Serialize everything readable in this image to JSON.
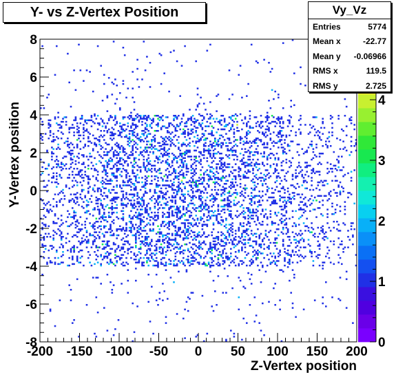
{
  "title": "Y- vs Z-Vertex Position",
  "stats": {
    "name": "Vy_Vz",
    "rows": [
      {
        "label": "Entries",
        "value": "5774"
      },
      {
        "label": "Mean x",
        "value": "-22.77"
      },
      {
        "label": "Mean y",
        "value": "-0.06966"
      },
      {
        "label": "RMS x",
        "value": "119.5"
      },
      {
        "label": "RMS y",
        "value": "2.725"
      }
    ]
  },
  "chart_data": {
    "type": "heatmap",
    "title": "Y- vs Z-Vertex Position",
    "xlabel": "Z-Vertex position",
    "ylabel": "Y-Vertex position",
    "xlim": [
      -200,
      200
    ],
    "ylim": [
      -8,
      8
    ],
    "xticks": [
      "-200",
      "-150",
      "-100",
      "-50",
      "0",
      "50",
      "100",
      "150",
      "200"
    ],
    "yticks": [
      "-8",
      "-6",
      "-4",
      "-2",
      "0",
      "2",
      "4",
      "6",
      "8"
    ],
    "zlim": [
      0,
      5
    ],
    "zticks": [
      "0",
      "1",
      "2",
      "3",
      "4",
      "5"
    ],
    "bins_x": 200,
    "bins_y": 200,
    "entries": 5774,
    "mean_x": -22.77,
    "mean_y": -0.06966,
    "rms_x": 119.5,
    "rms_y": 2.725,
    "dense_band_y": [
      -4,
      4
    ],
    "grid": false,
    "colormap": [
      "#7a00ff",
      "#6a00e8",
      "#5000e0",
      "#3a10e0",
      "#2030e6",
      "#1450f0",
      "#0a70f5",
      "#0a90f8",
      "#08b0f8",
      "#08d0f0",
      "#10e8d8",
      "#14f0b0",
      "#10ee80",
      "#18e850",
      "#30e838",
      "#60ee30",
      "#98f030",
      "#c8f030",
      "#f0e830",
      "#f8b830",
      "#f88830",
      "#f05030"
    ]
  }
}
